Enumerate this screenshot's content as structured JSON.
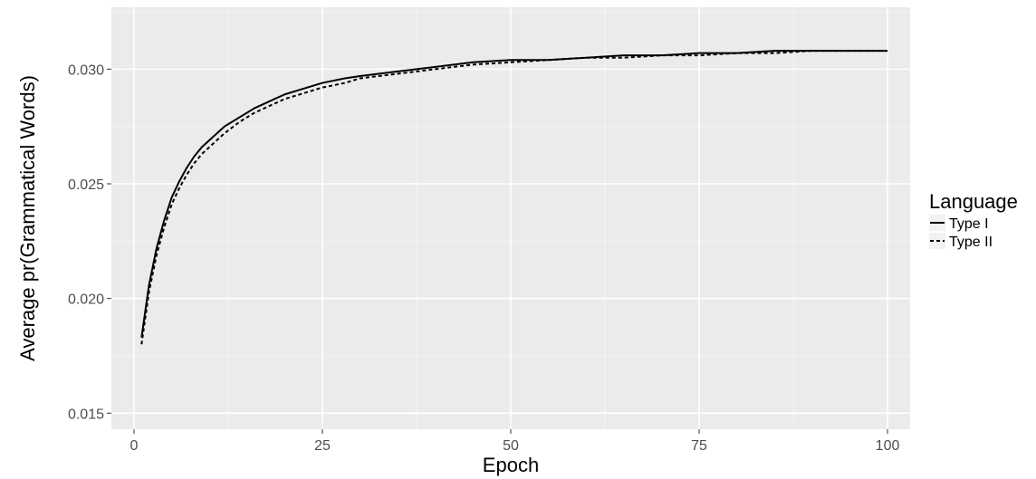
{
  "chart_data": {
    "type": "line",
    "title": "",
    "xlabel": "Epoch",
    "ylabel": "Average pr(Grammatical Words)",
    "xlim": [
      -3,
      103
    ],
    "ylim": [
      0.0143,
      0.0327
    ],
    "x_ticks": [
      0,
      25,
      50,
      75,
      100
    ],
    "x_tick_labels": [
      "0",
      "25",
      "50",
      "75",
      "100"
    ],
    "y_ticks": [
      0.015,
      0.02,
      0.025,
      0.03
    ],
    "y_tick_labels": [
      "0.015",
      "0.020",
      "0.025",
      "0.030"
    ],
    "grid": true,
    "background": "#ebebeb",
    "legend": {
      "title": "Language",
      "position": "right"
    },
    "series": [
      {
        "name": "Type I",
        "line_style": "solid",
        "color": "#000000",
        "x": [
          1,
          2,
          3,
          4,
          5,
          6,
          7,
          8,
          9,
          10,
          12,
          14,
          16,
          18,
          20,
          22,
          25,
          28,
          30,
          35,
          40,
          45,
          50,
          55,
          60,
          65,
          70,
          75,
          80,
          85,
          90,
          95,
          100
        ],
        "y": [
          0.0183,
          0.0206,
          0.0222,
          0.0234,
          0.0244,
          0.0251,
          0.0257,
          0.0262,
          0.0266,
          0.0269,
          0.0275,
          0.0279,
          0.0283,
          0.0286,
          0.0289,
          0.0291,
          0.0294,
          0.0296,
          0.0297,
          0.0299,
          0.0301,
          0.0303,
          0.0304,
          0.0304,
          0.0305,
          0.0306,
          0.0306,
          0.0307,
          0.0307,
          0.0308,
          0.0308,
          0.0308,
          0.0308
        ]
      },
      {
        "name": "Type II",
        "line_style": "dashed",
        "color": "#000000",
        "x": [
          1,
          2,
          3,
          4,
          5,
          6,
          7,
          8,
          9,
          10,
          12,
          14,
          16,
          18,
          20,
          22,
          25,
          28,
          30,
          35,
          40,
          45,
          50,
          55,
          60,
          65,
          70,
          75,
          80,
          85,
          90,
          95,
          100
        ],
        "y": [
          0.018,
          0.0203,
          0.0219,
          0.0231,
          0.0241,
          0.0248,
          0.0254,
          0.0259,
          0.0263,
          0.0266,
          0.0272,
          0.0277,
          0.0281,
          0.0284,
          0.0287,
          0.0289,
          0.0292,
          0.0294,
          0.0296,
          0.0298,
          0.03,
          0.0302,
          0.0303,
          0.0304,
          0.0305,
          0.0305,
          0.0306,
          0.0306,
          0.0307,
          0.0307,
          0.0308,
          0.0308,
          0.0308
        ]
      }
    ]
  }
}
